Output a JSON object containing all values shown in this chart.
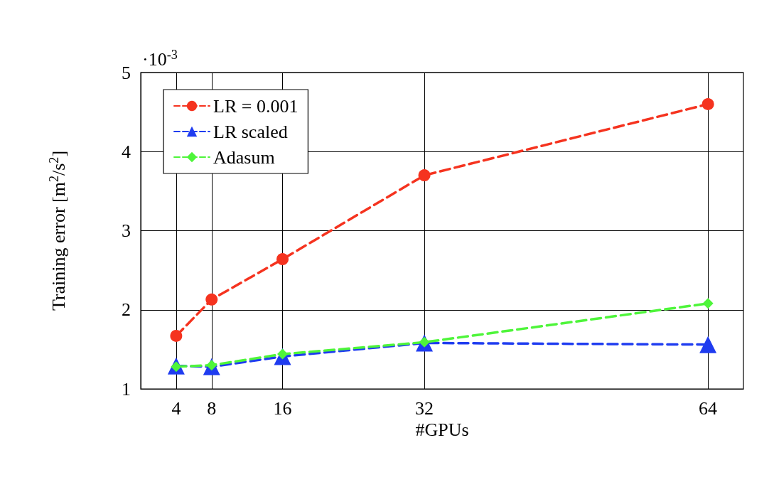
{
  "chart_data": {
    "type": "line",
    "xlabel": "#GPUs",
    "ylabel": "Training error [m$^{2}$/s$^{2}$]",
    "annotations": [
      "·10$^{-3}$"
    ],
    "x": [
      4,
      8,
      16,
      32,
      64
    ],
    "xlim": [
      0,
      68
    ],
    "xticks": [
      4,
      8,
      16,
      32,
      64
    ],
    "ylim": [
      1,
      5
    ],
    "yticks": [
      1,
      2,
      3,
      4,
      5
    ],
    "grid": true,
    "legend": "top left",
    "line_style": "dashed",
    "series": [
      {
        "name": "LR = 0.001",
        "color": "#f5331f",
        "marker": "circle",
        "values": [
          1.67,
          2.13,
          2.64,
          3.7,
          4.6
        ]
      },
      {
        "name": "LR scaled",
        "color": "#1f3cf0",
        "marker": "triangle",
        "values": [
          1.29,
          1.28,
          1.41,
          1.58,
          1.56
        ]
      },
      {
        "name": "Adasum",
        "color": "#4ef53a",
        "marker": "diamond",
        "values": [
          1.28,
          1.3,
          1.44,
          1.59,
          2.08
        ]
      }
    ]
  }
}
